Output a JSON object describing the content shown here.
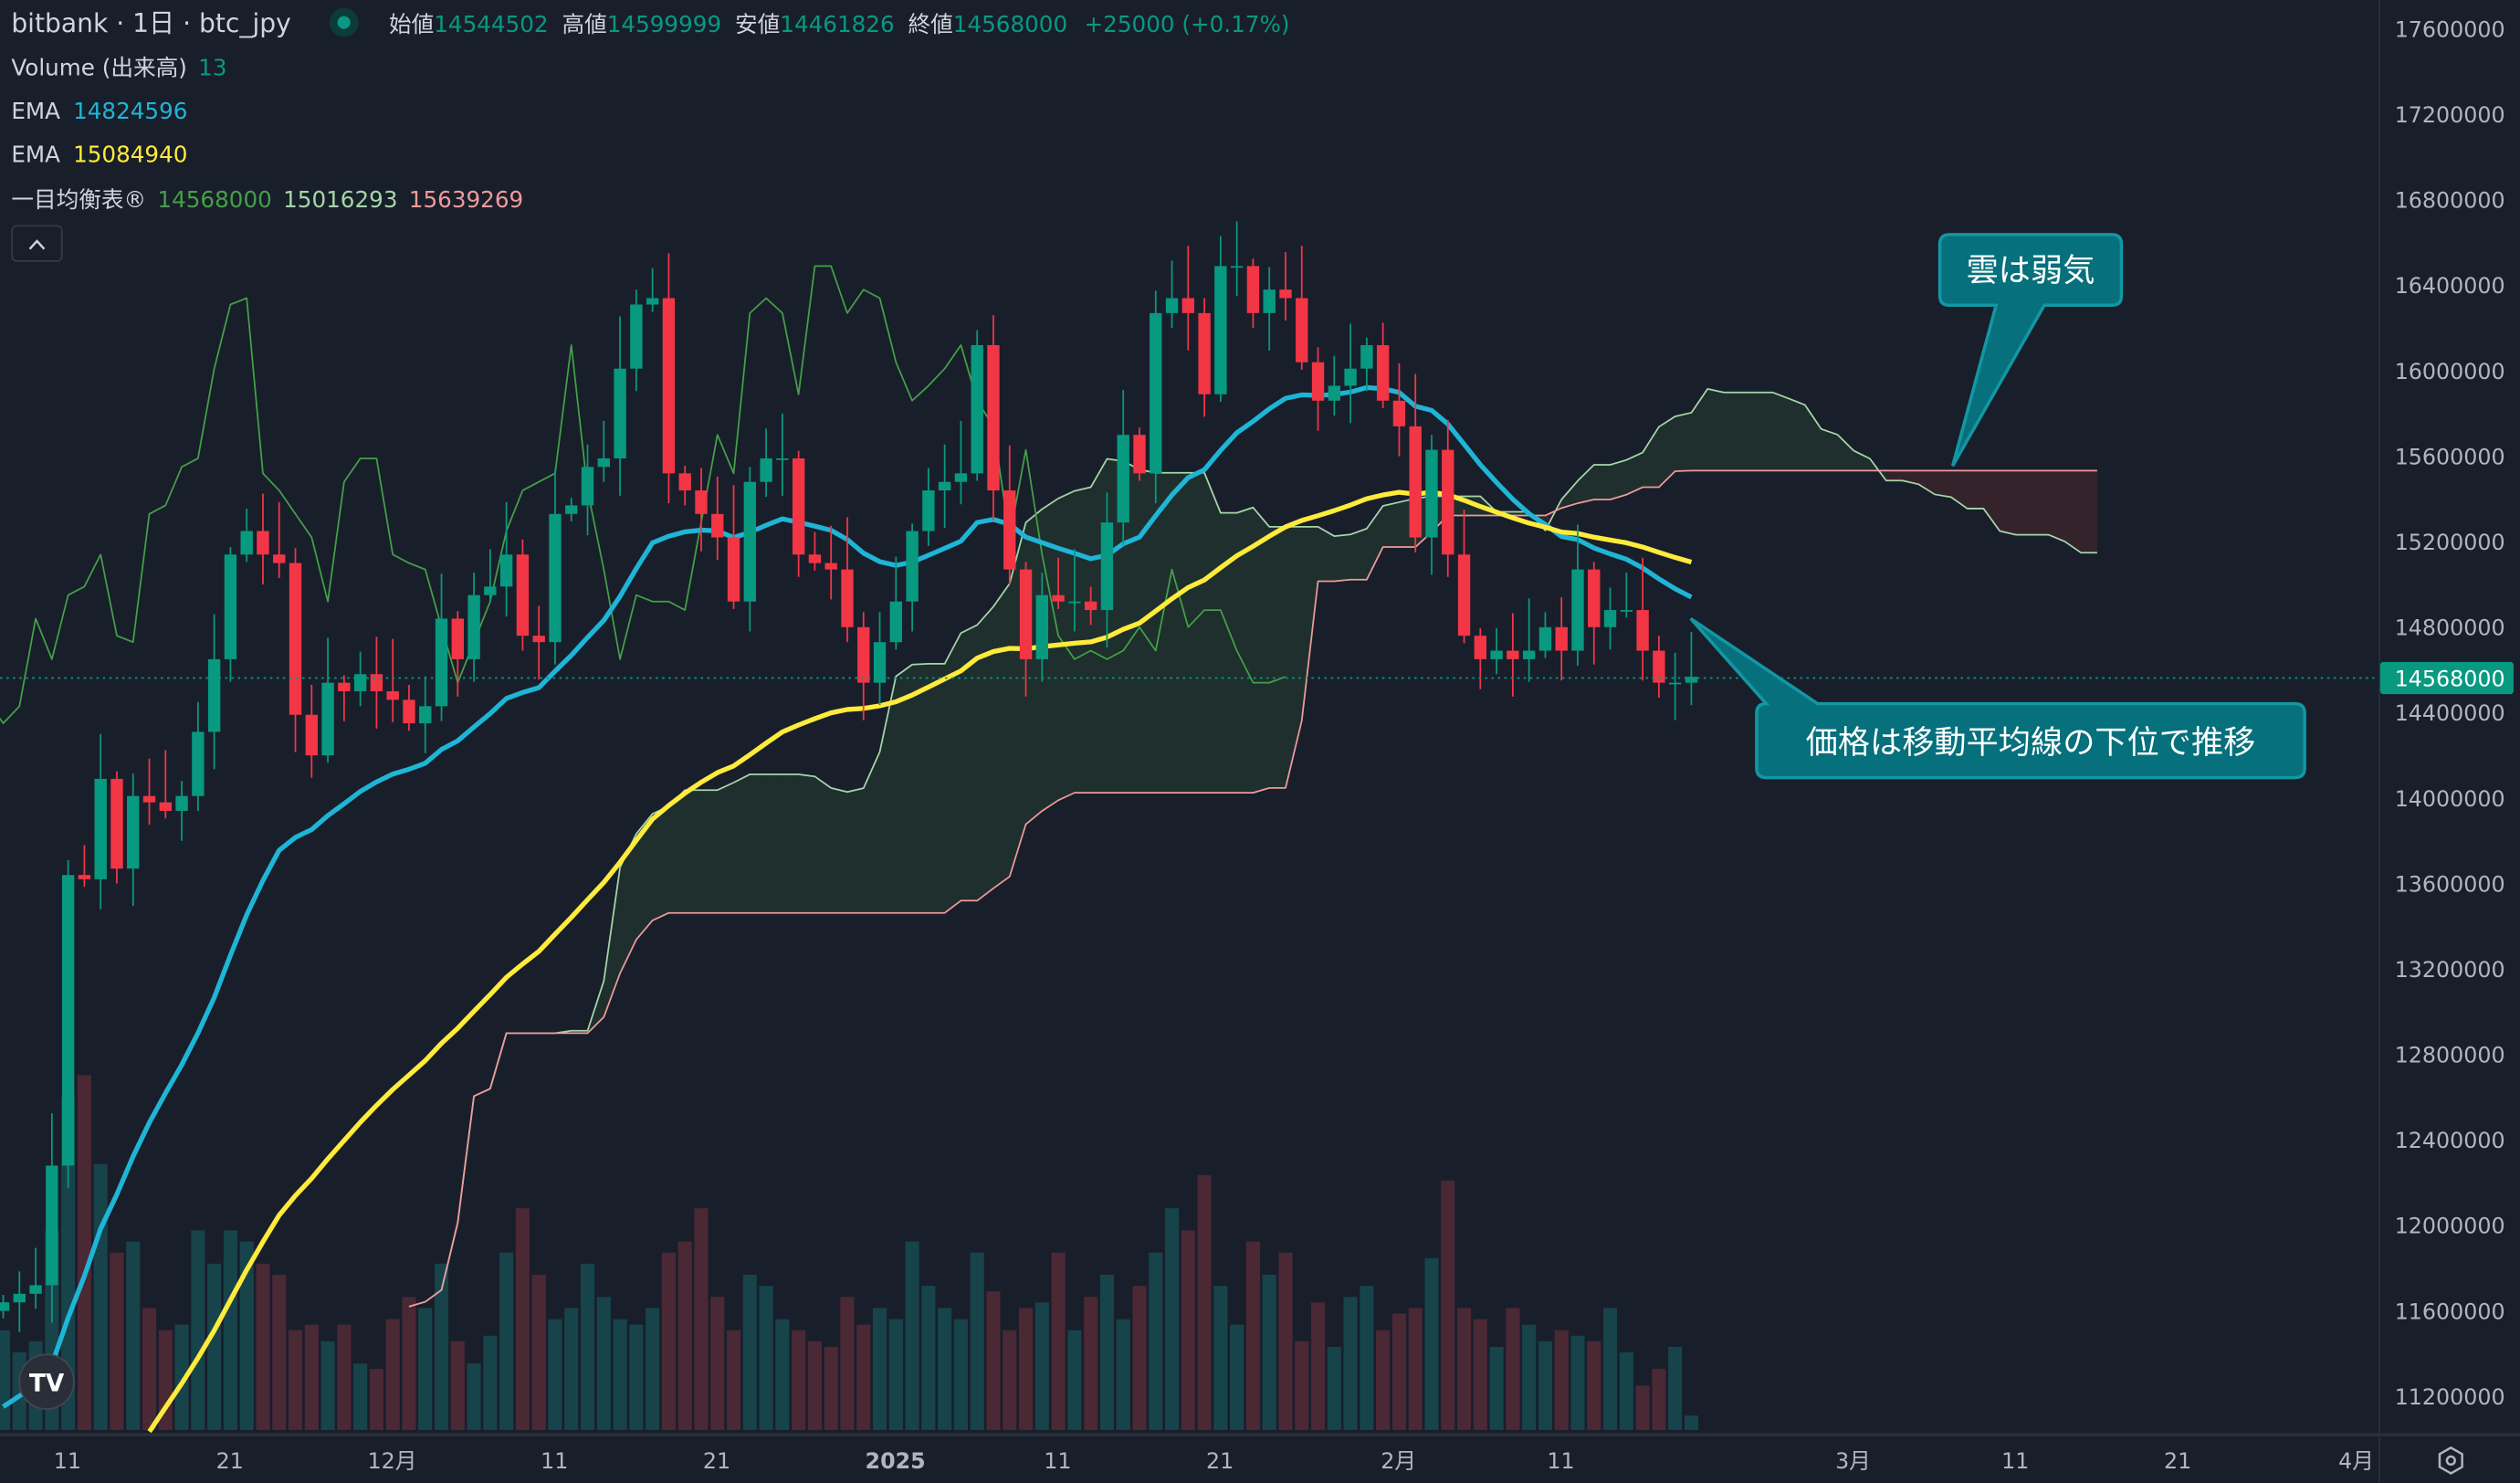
{
  "header": {
    "symbol": "bitbank · 1日 · btc_jpy",
    "open_label": "始値",
    "open": "14544502",
    "high_label": "高値",
    "high": "14599999",
    "low_label": "安値",
    "low": "14461826",
    "close_label": "終値",
    "close": "14568000",
    "change": "+25000 (+0.17%)"
  },
  "legend": {
    "volume_label": "Volume (出来高)",
    "volume_value": "13",
    "ema1_label": "EMA",
    "ema1_value": "14824596",
    "ema2_label": "EMA",
    "ema2_value": "15084940",
    "ichimoku_label": "一目均衡表®",
    "ichimoku_v1": "14568000",
    "ichimoku_v2": "15016293",
    "ichimoku_v3": "15639269",
    "collapse_icon": "chevron-up-icon"
  },
  "annotations": {
    "cloud_note": "雲は弱気",
    "price_note": "価格は移動平均線の下位で推移"
  },
  "colors": {
    "background": "#191e2b",
    "up": "#089981",
    "down": "#f23645",
    "ema_fast": "#1fb5d6",
    "ema_slow": "#ffeb3b",
    "span_a": "#a5d6a7",
    "span_b": "#ef9a9a",
    "chikou": "#43a047",
    "callout": "#06707c"
  },
  "current_price_label": "14568000",
  "chart_data": {
    "type": "candlestick",
    "title": "bitbank · 1日 · btc_jpy",
    "ylim": [
      11000000,
      17800000
    ],
    "y_ticks": [
      "17600000",
      "17200000",
      "16800000",
      "16400000",
      "16000000",
      "15600000",
      "15200000",
      "14800000",
      "14400000",
      "14000000",
      "13600000",
      "13200000",
      "12800000",
      "12400000",
      "12000000",
      "11600000",
      "11200000"
    ],
    "x_ticks": [
      "11",
      "21",
      "12月",
      "11",
      "21",
      "2025",
      "11",
      "21",
      "2月",
      "11",
      "3月",
      "11",
      "21",
      "4月"
    ],
    "x_tick_day_index": [
      4,
      14,
      24,
      34,
      44,
      55,
      65,
      75,
      86,
      96,
      114,
      124,
      134,
      145
    ],
    "first_open": 11600000,
    "closes": [
      11640000,
      11680000,
      11720000,
      12280000,
      13640000,
      13620000,
      14090000,
      13670000,
      14010000,
      13980000,
      13940000,
      14010000,
      14310000,
      14650000,
      15140000,
      15250000,
      15140000,
      15100000,
      14390000,
      14200000,
      14540000,
      14500000,
      14580000,
      14500000,
      14460000,
      14350000,
      14430000,
      14840000,
      14650000,
      14950000,
      14990000,
      15140000,
      14760000,
      14730000,
      15330000,
      15370000,
      15550000,
      15590000,
      16010000,
      16310000,
      16340000,
      15520000,
      15440000,
      15330000,
      15220000,
      14920000,
      15480000,
      15590000,
      15590000,
      15140000,
      15100000,
      15070000,
      14800000,
      14540000,
      14730000,
      14920000,
      15250000,
      15440000,
      15480000,
      15520000,
      16120000,
      15440000,
      15070000,
      14650000,
      14950000,
      14920000,
      14920000,
      14880000,
      15290000,
      15700000,
      15520000,
      16270000,
      16340000,
      16270000,
      15890000,
      16490000,
      16490000,
      16270000,
      16380000,
      16340000,
      16040000,
      15860000,
      15930000,
      16010000,
      16120000,
      15860000,
      15740000,
      15220000,
      15630000,
      15140000,
      14760000,
      14650000,
      14690000,
      14650000,
      14690000,
      14800000,
      14690000,
      15070000,
      14800000,
      14880000,
      14880000,
      14690000,
      14540000,
      14540000,
      14568000
    ],
    "volumes": [
      90,
      70,
      80,
      180,
      300,
      320,
      240,
      160,
      170,
      110,
      90,
      95,
      180,
      150,
      180,
      170,
      150,
      140,
      90,
      95,
      80,
      95,
      60,
      55,
      100,
      120,
      110,
      150,
      80,
      60,
      85,
      160,
      200,
      140,
      100,
      110,
      150,
      120,
      100,
      95,
      110,
      160,
      170,
      200,
      120,
      90,
      140,
      130,
      100,
      90,
      80,
      75,
      120,
      95,
      110,
      100,
      170,
      130,
      110,
      100,
      160,
      125,
      90,
      110,
      115,
      160,
      90,
      120,
      140,
      100,
      130,
      160,
      200,
      180,
      230,
      130,
      95,
      170,
      140,
      160,
      80,
      115,
      75,
      120,
      130,
      90,
      105,
      110,
      155,
      225,
      110,
      100,
      75,
      110,
      95,
      80,
      90,
      85,
      80,
      110,
      70,
      40,
      55,
      75,
      13
    ]
  }
}
